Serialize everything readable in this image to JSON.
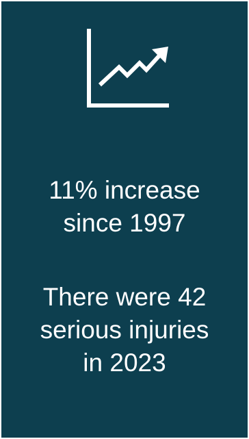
{
  "icon": "trending-up-chart-icon",
  "colors": {
    "card_background": "#0d3f4f",
    "text": "#ffffff"
  },
  "stat_increase": {
    "lines": [
      "11% increase",
      "since 1997"
    ]
  },
  "stat_injuries": {
    "lines": [
      "There were 42",
      "serious injuries",
      "in 2023"
    ]
  }
}
